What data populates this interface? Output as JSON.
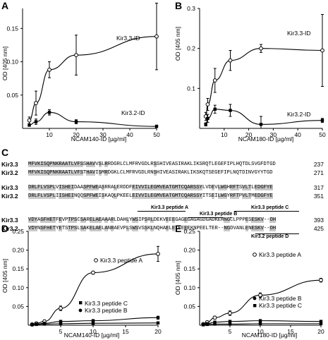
{
  "panels": {
    "A": {
      "letter": "A",
      "ylabel": "OD [405 nm]",
      "xlabel": "NCAM140-ID [µg/ml]",
      "xticks": [
        "10",
        "20",
        "30",
        "40",
        "50"
      ],
      "yticks": [
        "0.05",
        "0.10",
        "0.15"
      ],
      "series_labels": [
        "Kir3.3-ID",
        "Kir3.2-ID"
      ]
    },
    "B": {
      "letter": "B",
      "ylabel": "OD [405 nm]",
      "xlabel": "NCAM180-ID [µg/ml]",
      "xticks": [
        "10",
        "20",
        "30",
        "40",
        "50"
      ],
      "yticks": [
        "0.1",
        "0.2",
        "0.3"
      ],
      "series_labels": [
        "Kir3.3-ID",
        "Kir3.2-ID"
      ]
    },
    "C": {
      "letter": "C"
    },
    "D": {
      "letter": "D",
      "ylabel": "OD [405 nm]",
      "xlabel": "NCAM140-ID [µg/ml]",
      "xticks": [
        "5",
        "10",
        "15",
        "20"
      ],
      "yticks": [
        "0.05",
        "0.10",
        "0.15",
        "0.20",
        "0.25"
      ],
      "series_labels": [
        "Kir3.3 peptide A",
        "Kir3.3 peptide C",
        "Kir3.3 peptide B"
      ]
    },
    "E": {
      "letter": "E",
      "ylabel": "OD [405 nm]",
      "xlabel": "NCAM180-ID [µg/ml]",
      "xticks": [
        "5",
        "10",
        "15",
        "20"
      ],
      "yticks": [
        "0.05",
        "0.10",
        "0.15",
        "0.20",
        "0.25"
      ],
      "series_labels": [
        "Kir3.3 peptide A",
        "Kir3.3 peptide B",
        "Kir3.3 peptide C"
      ]
    }
  },
  "alignment": {
    "blocks": [
      {
        "rows": [
          {
            "name": "Kir3.3",
            "seq": "MFVKISQPNKRAATLVFSSHAVVSLRRDGRLCLMFRVGDLRSSHIVEASIRAKLIKSRQTLEGEFIPLHQTDLSVGFDTGD",
            "num": "237"
          },
          {
            "name": "Kir3.2",
            "seq": "MFVKISQPNKRAATLVFSTHAVISMRDGKLCLMFRVGDLRNSHIVEASIRAKLIKSKQTSEGEFIPLNQTDINVGYYTGD",
            "num": "271"
          }
        ]
      },
      {
        "rows": [
          {
            "name": "Kir3.3",
            "seq": "DRLFLVSPLVISHEIDAASPFWEASRRALERDDFEIVVILEGMVEATGMTCQARSSYLVDEVLWGHRFTSVLTLEDGFYE",
            "num": "317"
          },
          {
            "name": "Kir3.2",
            "seq": "DRLFLVSPLIISHEINQQSPFWEISKAQLPKEELEIVVILEGMVEATGMTCQARSSYITSEILWGYRFTPVLTMEDGFYE",
            "num": "351"
          }
        ]
      },
      {
        "rows": [
          {
            "name": "Kir3.3",
            "seq": "VDYASFHETFEVPTPSCSARELAEAAARLDAHLYWSIPSRLDEKVEEEGAGEGAGAGDGADKEHNGCLPPPESESKV--OH",
            "num": "393"
          },
          {
            "name": "Kir3.2",
            "seq": "VDYNSFHETYETSTPSLSAKELAELANRAEVPLSWSVSSKLNQHAELETEEEEKNPEELTER--NGDVANLENESKV--OH",
            "num": "425"
          }
        ]
      }
    ],
    "peptides": {
      "a": "Kir3.3 peptide A",
      "b": "Kir3.3 peptide B",
      "c": "Kir3.3 peptide C",
      "d": "Kir3.2 peptide D"
    }
  },
  "chart_data": [
    {
      "type": "line",
      "panel": "A",
      "xlabel": "NCAM140-ID [µg/ml]",
      "ylabel": "OD [405 nm]",
      "xlim": [
        0,
        50
      ],
      "ylim": [
        0,
        0.18
      ],
      "series": [
        {
          "name": "Kir3.3-ID",
          "x": [
            2.5,
            5,
            10,
            20,
            50
          ],
          "y": [
            0.012,
            0.038,
            0.088,
            0.11,
            0.138
          ],
          "err": [
            0.005,
            0.018,
            0.012,
            0.03,
            0.05
          ]
        },
        {
          "name": "Kir3.2-ID",
          "x": [
            2.5,
            5,
            10,
            20,
            50
          ],
          "y": [
            0.005,
            0.01,
            0.024,
            0.01,
            0.003
          ],
          "err": [
            0.002,
            0.004,
            0.004,
            0.003,
            0.002
          ]
        }
      ]
    },
    {
      "type": "line",
      "panel": "B",
      "xlabel": "NCAM180-ID [µg/ml]",
      "ylabel": "OD [405 nm]",
      "xlim": [
        0,
        50
      ],
      "ylim": [
        0,
        0.3
      ],
      "series": [
        {
          "name": "Kir3.3-ID",
          "x": [
            2.5,
            3.3,
            6.25,
            12.5,
            25,
            50
          ],
          "y": [
            0.03,
            0.06,
            0.12,
            0.17,
            0.2,
            0.195
          ],
          "err": [
            0.01,
            0.015,
            0.03,
            0.025,
            0.01,
            0.09
          ]
        },
        {
          "name": "Kir3.2-ID",
          "x": [
            2.5,
            3.3,
            6.25,
            12.5,
            25,
            50
          ],
          "y": [
            0.01,
            0.025,
            0.048,
            0.045,
            0.01,
            0.02
          ],
          "err": [
            0.004,
            0.01,
            0.01,
            0.015,
            0.02,
            0.005
          ]
        }
      ]
    },
    {
      "type": "line",
      "panel": "D",
      "xlabel": "NCAM140-ID [µg/ml]",
      "ylabel": "OD [405 nm]",
      "xlim": [
        0,
        20
      ],
      "ylim": [
        0,
        0.25
      ],
      "series": [
        {
          "name": "Kir3.3 peptide A",
          "x": [
            0.6,
            1.25,
            2.5,
            5,
            10,
            20
          ],
          "y": [
            0.002,
            0.005,
            0.01,
            0.045,
            0.14,
            0.19
          ],
          "err": [
            0.002,
            0.002,
            0.004,
            0.006,
            0.004,
            0.02
          ]
        },
        {
          "name": "Kir3.3 peptide C",
          "x": [
            0.6,
            1.25,
            2.5,
            5,
            10,
            20
          ],
          "y": [
            0.002,
            0.003,
            0.005,
            0.01,
            0.012,
            0.02
          ],
          "err": [
            0.001,
            0.001,
            0.002,
            0.002,
            0.003,
            0.004
          ]
        },
        {
          "name": "Kir3.3 peptide B",
          "x": [
            0.6,
            1.25,
            2.5,
            5,
            10,
            20
          ],
          "y": [
            0.001,
            0.002,
            0.003,
            0.004,
            0.005,
            0.006
          ],
          "err": [
            0.001,
            0.001,
            0.001,
            0.001,
            0.002,
            0.002
          ]
        }
      ]
    },
    {
      "type": "line",
      "panel": "E",
      "xlabel": "NCAM180-ID [µg/ml]",
      "ylabel": "OD [405 nm]",
      "xlim": [
        0,
        20
      ],
      "ylim": [
        0,
        0.25
      ],
      "series": [
        {
          "name": "Kir3.3 peptide A",
          "x": [
            0.6,
            1.25,
            2.5,
            5,
            10,
            20
          ],
          "y": [
            0.003,
            0.008,
            0.02,
            0.032,
            0.08,
            0.12
          ],
          "err": [
            0.002,
            0.003,
            0.004,
            0.006,
            0.006,
            0.005
          ]
        },
        {
          "name": "Kir3.3 peptide B",
          "x": [
            0.6,
            1.25,
            2.5,
            5,
            10,
            20
          ],
          "y": [
            0.002,
            0.004,
            0.008,
            0.01,
            0.012,
            0.01
          ],
          "err": [
            0.001,
            0.002,
            0.002,
            0.002,
            0.003,
            0.003
          ]
        },
        {
          "name": "Kir3.3 peptide C",
          "x": [
            0.6,
            1.25,
            2.5,
            5,
            10,
            20
          ],
          "y": [
            0.001,
            0.002,
            0.003,
            0.003,
            0.004,
            0.004
          ],
          "err": [
            0.001,
            0.001,
            0.001,
            0.001,
            0.001,
            0.001
          ]
        }
      ]
    }
  ]
}
